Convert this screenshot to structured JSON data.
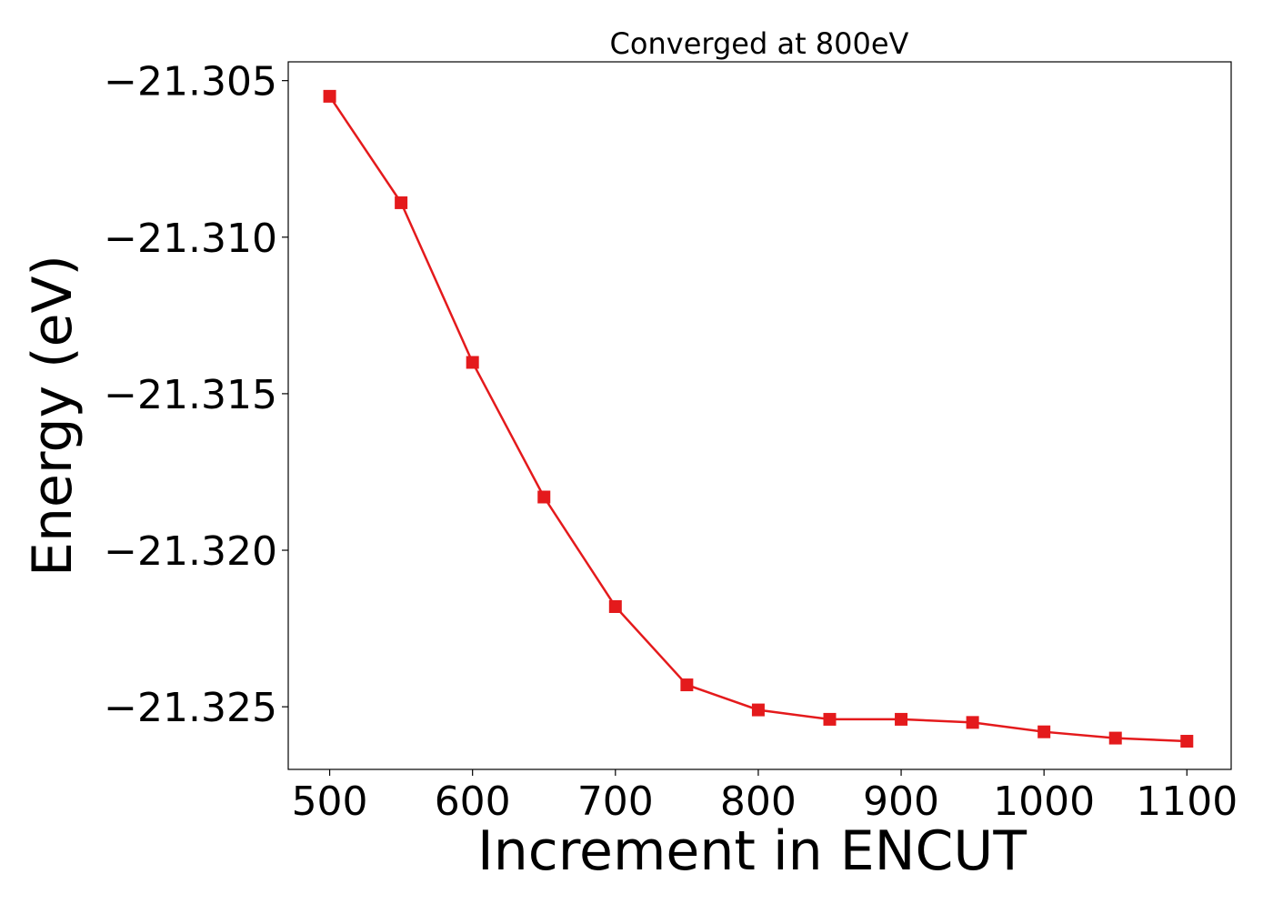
{
  "chart_data": {
    "type": "line",
    "title": "Converged at 800eV",
    "xlabel": "Increment in ENCUT",
    "ylabel": "Energy (eV)",
    "x": [
      500,
      550,
      600,
      650,
      700,
      750,
      800,
      850,
      900,
      950,
      1000,
      1050,
      1100
    ],
    "series": [
      {
        "values": [
          -21.3055,
          -21.3089,
          -21.314,
          -21.3183,
          -21.3218,
          -21.3243,
          -21.3251,
          -21.3254,
          -21.3254,
          -21.3255,
          -21.3258,
          -21.326,
          -21.3261
        ]
      }
    ],
    "xlim": [
      471,
      1131
    ],
    "ylim": [
      -21.327,
      -21.3044
    ],
    "xticks": [
      500,
      600,
      700,
      800,
      900,
      1000,
      1100
    ],
    "xtick_labels": [
      "500",
      "600",
      "700",
      "800",
      "900",
      "1000",
      "1100"
    ],
    "yticks": [
      -21.305,
      -21.31,
      -21.315,
      -21.32,
      -21.325
    ],
    "ytick_labels": [
      "−21.305",
      "−21.310",
      "−21.315",
      "−21.320",
      "−21.325"
    ],
    "marker": "square",
    "line_color": "#e41a1c",
    "grid": false,
    "legend": "none"
  }
}
